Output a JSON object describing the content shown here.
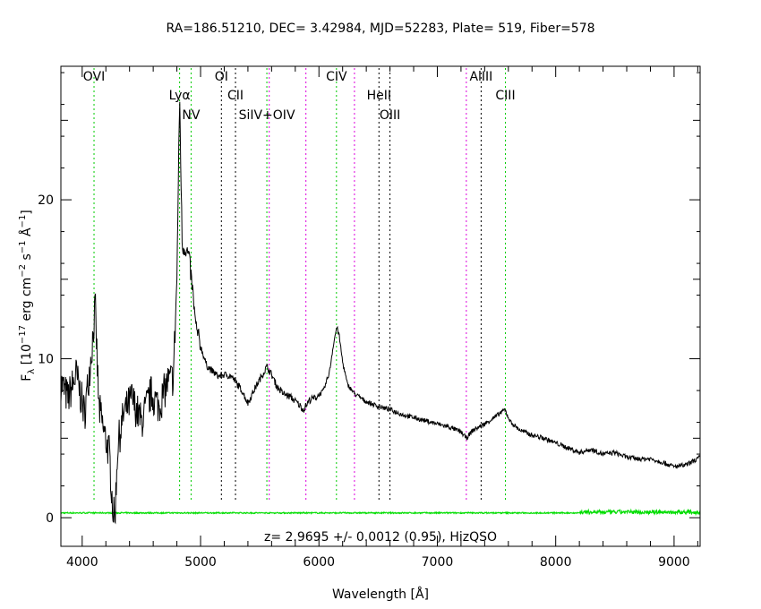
{
  "chart_data": {
    "type": "line",
    "title": "RA=186.51210, DEC= 3.42984, MJD=52283, Plate= 519, Fiber=578",
    "xlabel": "Wavelength [Å]",
    "ylabel": "F",
    "ylabel_sub": "λ",
    "ylabel_rest": " [10",
    "ylabel_exp1": "−17",
    "ylabel_mid1": " erg cm",
    "ylabel_exp2": "−2",
    "ylabel_mid2": " s",
    "ylabel_exp3": "−1",
    "ylabel_mid3": " Å",
    "ylabel_exp4": "−1",
    "ylabel_end": "]",
    "xlim": [
      3820,
      9220
    ],
    "ylim": [
      -1.8,
      28.4
    ],
    "x_ticks": [
      4000,
      5000,
      6000,
      7000,
      8000,
      9000
    ],
    "y_ticks": [
      0,
      10,
      20
    ],
    "annotation": "z= 2.9695 +/- 0.0012 (0.95), HizQSO",
    "series_colors": {
      "flux": "#000000",
      "error": "#00dd00"
    },
    "spectral_lines": [
      {
        "label": "OVI",
        "x": 4100,
        "color": "#00cc00",
        "label_row": 1
      },
      {
        "label": "Lyα",
        "x": 4823,
        "color": "#00cc00",
        "label_row": 2
      },
      {
        "label": "NV",
        "x": 4920,
        "color": "#00cc00",
        "label_row": 3
      },
      {
        "label": "OI",
        "x": 5176,
        "color": "#000000",
        "label_row": 1
      },
      {
        "label": "CII",
        "x": 5295,
        "color": "#000000",
        "label_row": 2
      },
      {
        "label": "SiIV+OIV",
        "x": 5560,
        "color": "#00cc00",
        "label_row": 3
      },
      {
        "label": "",
        "x": 5580,
        "color": "#dd00dd",
        "label_row": 0
      },
      {
        "label": "",
        "x": 5890,
        "color": "#dd00dd",
        "label_row": 0
      },
      {
        "label": "CIV",
        "x": 6148,
        "color": "#00cc00",
        "label_row": 1
      },
      {
        "label": "",
        "x": 6300,
        "color": "#dd00dd",
        "label_row": 0
      },
      {
        "label": "HeII",
        "x": 6507,
        "color": "#000000",
        "label_row": 2
      },
      {
        "label": "OIII",
        "x": 6600,
        "color": "#000000",
        "label_row": 3
      },
      {
        "label": "",
        "x": 7245,
        "color": "#dd00dd",
        "label_row": 0
      },
      {
        "label": "AlIII",
        "x": 7370,
        "color": "#000000",
        "label_row": 1
      },
      {
        "label": "CIII",
        "x": 7575,
        "color": "#00cc00",
        "label_row": 2
      }
    ],
    "flux_anchors": [
      [
        3820,
        8.5
      ],
      [
        3880,
        7.5
      ],
      [
        3950,
        9.0
      ],
      [
        4020,
        6.5
      ],
      [
        4080,
        10.5
      ],
      [
        4110,
        13.3
      ],
      [
        4140,
        7.0
      ],
      [
        4180,
        5.5
      ],
      [
        4230,
        4.0
      ],
      [
        4260,
        0.5
      ],
      [
        4275,
        -0.2
      ],
      [
        4300,
        4.5
      ],
      [
        4350,
        6.5
      ],
      [
        4420,
        7.5
      ],
      [
        4500,
        6.0
      ],
      [
        4580,
        7.8
      ],
      [
        4650,
        7.0
      ],
      [
        4720,
        8.5
      ],
      [
        4770,
        8.8
      ],
      [
        4800,
        15.0
      ],
      [
        4823,
        26.5
      ],
      [
        4845,
        17.0
      ],
      [
        4870,
        17.0
      ],
      [
        4900,
        16.5
      ],
      [
        4930,
        14.5
      ],
      [
        4960,
        12.0
      ],
      [
        5000,
        10.8
      ],
      [
        5050,
        9.6
      ],
      [
        5100,
        9.2
      ],
      [
        5150,
        8.9
      ],
      [
        5200,
        9.0
      ],
      [
        5260,
        8.9
      ],
      [
        5300,
        8.5
      ],
      [
        5350,
        8.0
      ],
      [
        5400,
        7.2
      ],
      [
        5450,
        8.0
      ],
      [
        5500,
        8.7
      ],
      [
        5560,
        9.5
      ],
      [
        5600,
        9.0
      ],
      [
        5650,
        8.2
      ],
      [
        5700,
        7.8
      ],
      [
        5760,
        7.6
      ],
      [
        5820,
        7.2
      ],
      [
        5870,
        6.8
      ],
      [
        5920,
        7.4
      ],
      [
        5980,
        7.6
      ],
      [
        6040,
        8.0
      ],
      [
        6090,
        9.2
      ],
      [
        6120,
        10.8
      ],
      [
        6150,
        12.0
      ],
      [
        6170,
        11.5
      ],
      [
        6200,
        9.8
      ],
      [
        6240,
        8.4
      ],
      [
        6300,
        7.8
      ],
      [
        6400,
        7.3
      ],
      [
        6500,
        7.0
      ],
      [
        6600,
        6.8
      ],
      [
        6700,
        6.5
      ],
      [
        6800,
        6.3
      ],
      [
        6900,
        6.1
      ],
      [
        7000,
        5.9
      ],
      [
        7100,
        5.7
      ],
      [
        7200,
        5.4
      ],
      [
        7245,
        5.0
      ],
      [
        7300,
        5.5
      ],
      [
        7400,
        5.9
      ],
      [
        7500,
        6.4
      ],
      [
        7570,
        6.8
      ],
      [
        7620,
        6.0
      ],
      [
        7700,
        5.5
      ],
      [
        7800,
        5.2
      ],
      [
        7900,
        5.0
      ],
      [
        8000,
        4.7
      ],
      [
        8100,
        4.4
      ],
      [
        8200,
        4.1
      ],
      [
        8300,
        4.3
      ],
      [
        8400,
        4.0
      ],
      [
        8500,
        4.1
      ],
      [
        8600,
        3.8
      ],
      [
        8700,
        3.7
      ],
      [
        8800,
        3.7
      ],
      [
        8900,
        3.5
      ],
      [
        9000,
        3.2
      ],
      [
        9100,
        3.3
      ],
      [
        9220,
        3.8
      ]
    ],
    "error_level": 0.3
  }
}
